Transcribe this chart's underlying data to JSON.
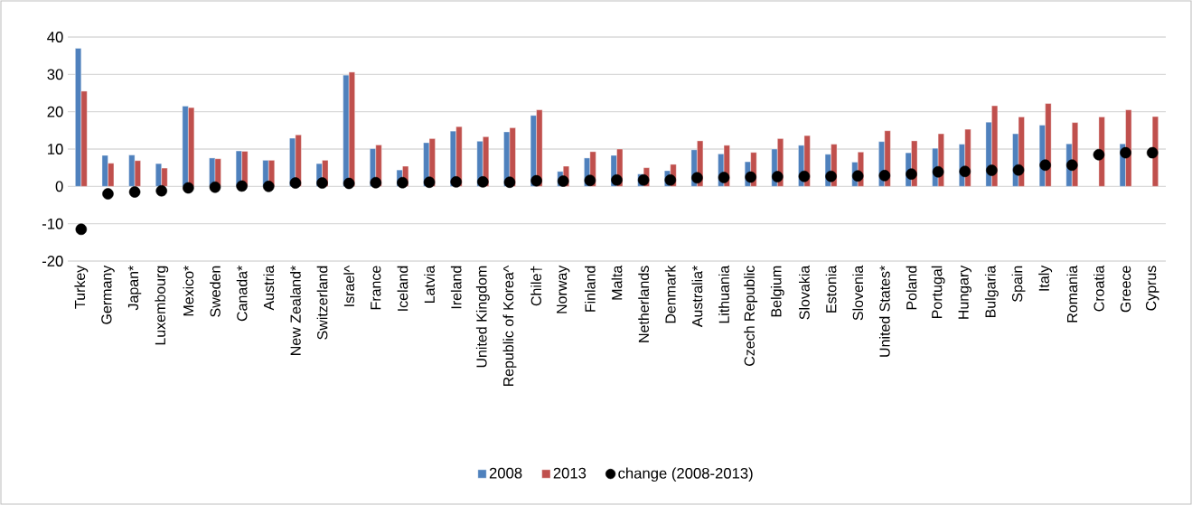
{
  "chart_data": {
    "type": "bar",
    "categories": [
      "Turkey",
      "Germany",
      "Japan*",
      "Luxembourg",
      "Mexico*",
      "Sweden",
      "Canada*",
      "Austria",
      "New Zealand*",
      "Switzerland",
      "Israel^",
      "France",
      "Iceland",
      "Latvia",
      "Ireland",
      "United Kingdom",
      "Republic of Korea^",
      "Chile†",
      "Norway",
      "Finland",
      "Malta",
      "Netherlands",
      "Denmark",
      "Australia*",
      "Lithuania",
      "Czech Republic",
      "Belgium",
      "Slovakia",
      "Estonia",
      "Slovenia",
      "United States*",
      "Poland",
      "Portugal",
      "Hungary",
      "Bulgaria",
      "Spain",
      "Italy",
      "Romania",
      "Croatia",
      "Greece",
      "Cyprus"
    ],
    "series": [
      {
        "name": "2008",
        "color": "#4f81bd",
        "values": [
          37,
          8.3,
          8.4,
          6.1,
          21.5,
          7.6,
          9.5,
          7,
          12.9,
          6.1,
          29.8,
          10.1,
          4.4,
          11.7,
          14.8,
          12.1,
          14.6,
          19,
          4,
          7.6,
          8.3,
          3.3,
          4.2,
          9.8,
          8.7,
          6.6,
          10,
          11,
          8.6,
          6.5,
          12,
          9,
          10.2,
          11.3,
          17.2,
          14.1,
          16.4,
          11.4,
          null,
          11.4,
          null
        ]
      },
      {
        "name": "2013",
        "color": "#c0504d",
        "values": [
          25.5,
          6.2,
          6.9,
          4.9,
          21.1,
          7.4,
          9.4,
          7,
          13.8,
          7,
          30.6,
          11.1,
          5.4,
          12.8,
          16,
          13.3,
          15.7,
          20.5,
          5.4,
          9.3,
          10,
          5,
          5.9,
          12.2,
          11,
          9.1,
          12.8,
          13.6,
          11.3,
          9.2,
          14.9,
          12.2,
          14.1,
          15.3,
          21.6,
          18.6,
          22.2,
          17.1,
          18.6,
          20.5,
          18.7
        ]
      },
      {
        "name": "change (2008-2013)",
        "type": "scatter",
        "color": "#000000",
        "marker": "circle",
        "values": [
          -11.5,
          -2,
          -1.5,
          -1.2,
          -0.4,
          -0.2,
          0.1,
          0,
          0.9,
          0.9,
          0.8,
          1,
          1,
          1.1,
          1.2,
          1.2,
          1.1,
          1.5,
          1.4,
          1.6,
          1.7,
          1.7,
          1.7,
          2.3,
          2.4,
          2.5,
          2.6,
          2.7,
          2.7,
          2.8,
          2.9,
          3.3,
          3.9,
          4,
          4.3,
          4.4,
          5.7,
          5.7,
          8.5,
          9,
          9
        ]
      }
    ],
    "ylim": [
      -20,
      40
    ],
    "yticks": [
      -20,
      -10,
      0,
      10,
      20,
      30,
      40
    ],
    "grid": "y",
    "legend": "bottom"
  }
}
